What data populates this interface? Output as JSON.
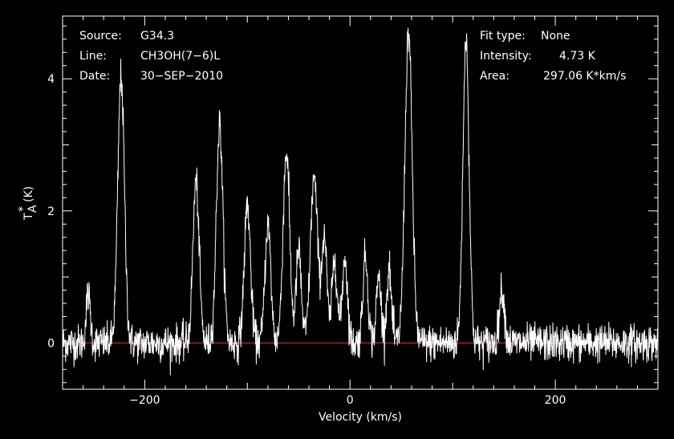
{
  "chart_data": {
    "type": "line",
    "title": "",
    "xlabel": "Velocity (km/s)",
    "ylabel_main": "T",
    "ylabel_sub": "A",
    "ylabel_sup": "*",
    "ylabel_unit": "(K)",
    "xlim": [
      -280,
      300
    ],
    "ylim": [
      -0.7,
      4.95
    ],
    "xticks": [
      -200,
      0,
      200
    ],
    "xtick_labels": [
      "−200",
      "0",
      "200"
    ],
    "yticks": [
      0,
      2,
      4
    ],
    "ytick_labels": [
      "0",
      "2",
      "4"
    ],
    "grid": false,
    "baseline": 0,
    "baseline_color": "#c0282a",
    "line_color": "#ffffff",
    "noise_rms": 0.14,
    "peaks": [
      {
        "x": -255,
        "y": 0.75,
        "w": 2.0
      },
      {
        "x": -223,
        "y": 4.05,
        "w": 3.2
      },
      {
        "x": -150,
        "y": 2.45,
        "w": 3.0
      },
      {
        "x": -127,
        "y": 3.3,
        "w": 3.2
      },
      {
        "x": -100,
        "y": 2.1,
        "w": 3.0
      },
      {
        "x": -80,
        "y": 1.8,
        "w": 2.8
      },
      {
        "x": -62,
        "y": 2.9,
        "w": 3.2
      },
      {
        "x": -50,
        "y": 1.4,
        "w": 2.5
      },
      {
        "x": -35,
        "y": 2.5,
        "w": 3.5
      },
      {
        "x": -25,
        "y": 1.6,
        "w": 2.5
      },
      {
        "x": -15,
        "y": 1.3,
        "w": 2.5
      },
      {
        "x": -5,
        "y": 1.3,
        "w": 2.5
      },
      {
        "x": 15,
        "y": 1.3,
        "w": 2.5
      },
      {
        "x": 28,
        "y": 1.0,
        "w": 2.3
      },
      {
        "x": 38,
        "y": 1.1,
        "w": 2.3
      },
      {
        "x": 57,
        "y": 4.72,
        "w": 3.5
      },
      {
        "x": 113,
        "y": 4.62,
        "w": 3.0
      },
      {
        "x": 148,
        "y": 0.8,
        "w": 2.5
      }
    ]
  },
  "annotations": {
    "source_label": "Source:",
    "source_value": "G34.3",
    "line_label": "Line:",
    "line_value": "CH3OH(7−6)L",
    "date_label": "Date:",
    "date_value": "30−SEP−2010",
    "fit_label": "Fit type:",
    "fit_value": "None",
    "intensity_label": "Intensity:",
    "intensity_value": "4.73 K",
    "area_label": "Area:",
    "area_value": "297.06 K*km/s"
  }
}
